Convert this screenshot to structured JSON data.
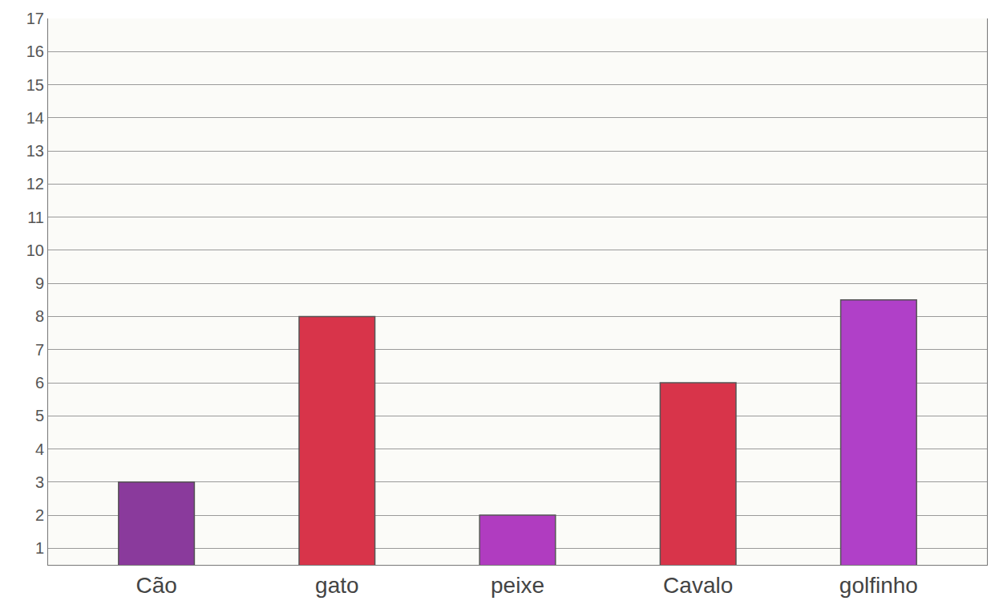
{
  "chart_data": {
    "type": "bar",
    "categories": [
      "Cão",
      "gato",
      "peixe",
      "Cavalo",
      "golfinho"
    ],
    "values": [
      3,
      8,
      2,
      6,
      8.5
    ],
    "colors": [
      "#8a3a9c",
      "#d8344a",
      "#b03cc0",
      "#d8344a",
      "#b040c8"
    ],
    "ylim": [
      0.5,
      17
    ],
    "yticks": [
      1,
      2,
      3,
      4,
      5,
      6,
      7,
      8,
      9,
      10,
      11,
      12,
      13,
      14,
      15,
      16,
      17
    ],
    "grid": true
  }
}
